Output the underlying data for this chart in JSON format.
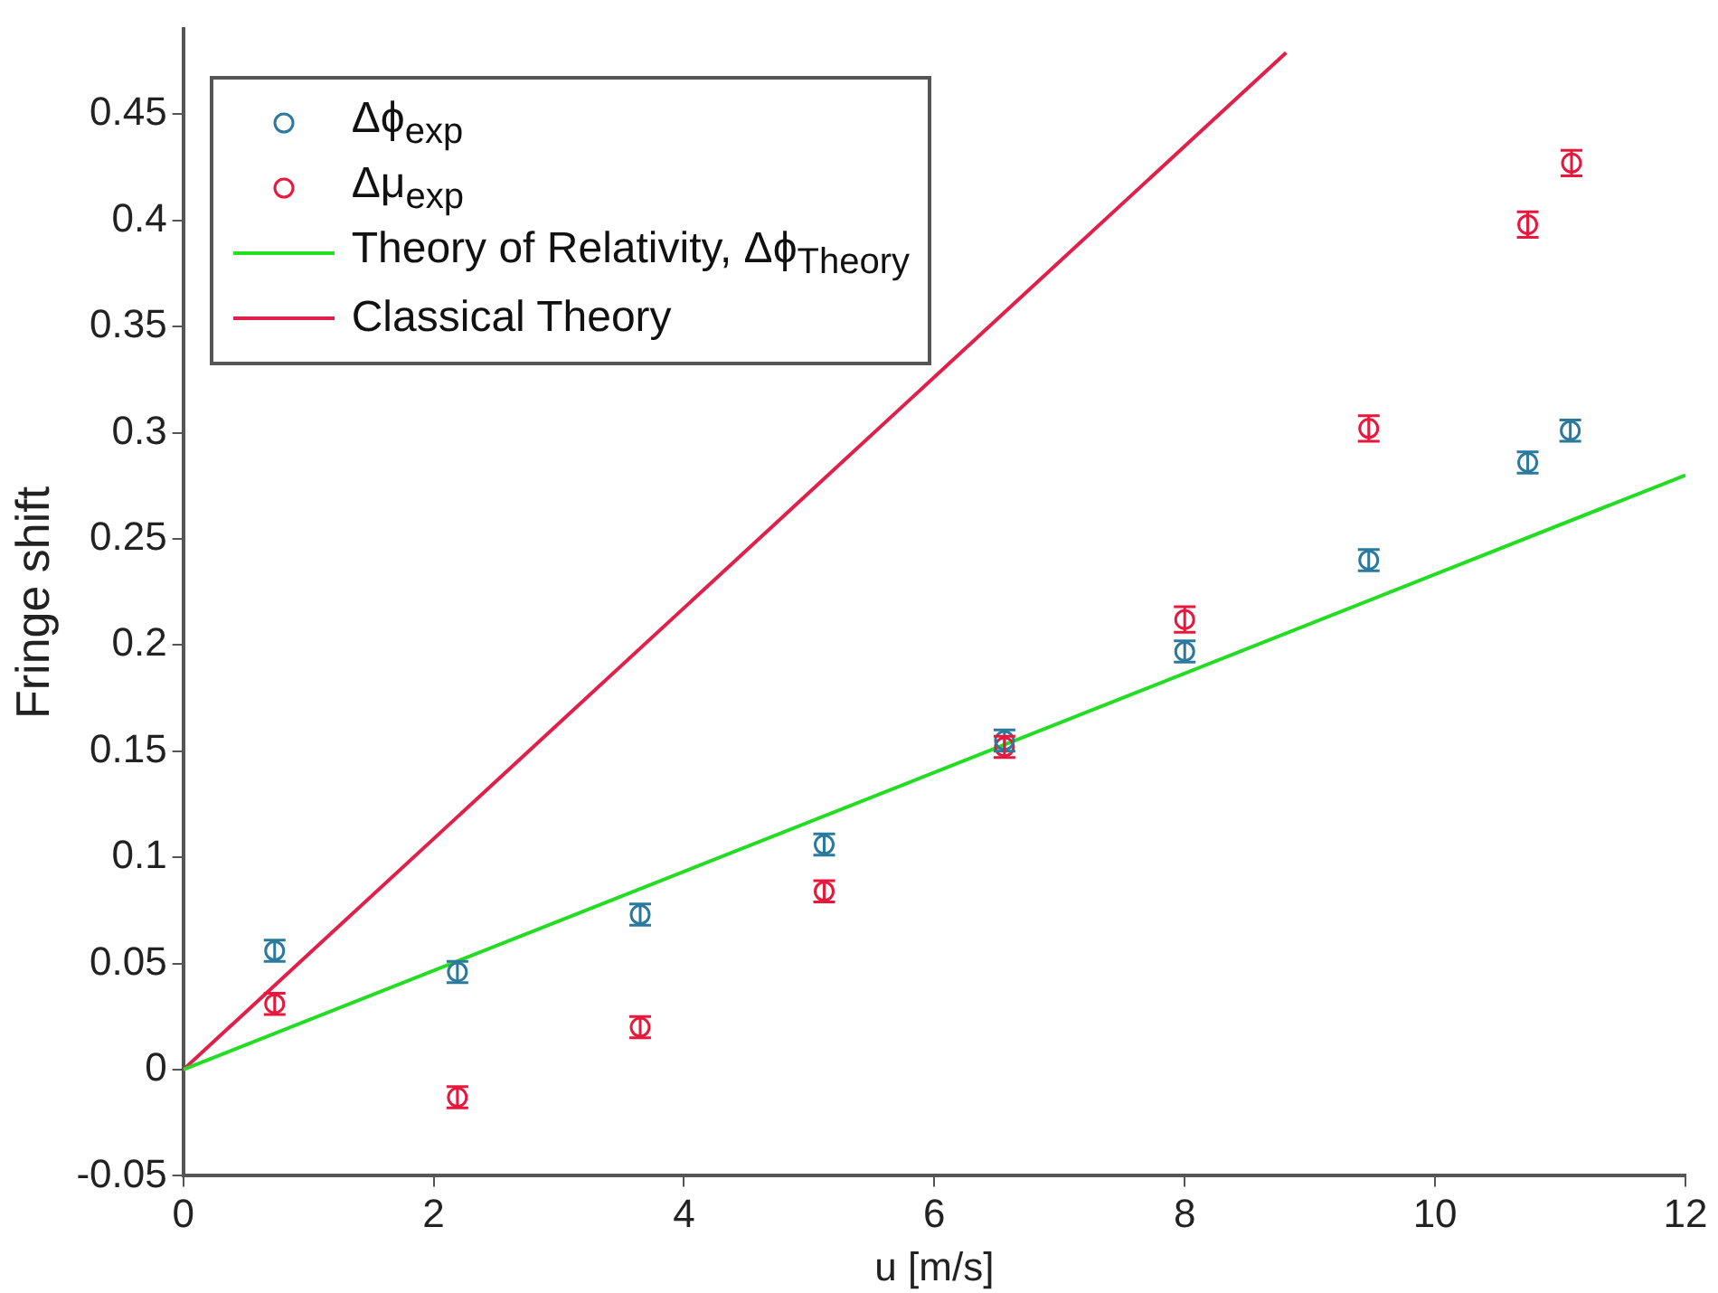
{
  "chart_data": {
    "type": "scatter",
    "xlabel": "u [m/s]",
    "ylabel": "Fringe shift",
    "xlim": [
      0,
      12
    ],
    "xticks": [
      0,
      2,
      4,
      6,
      8,
      10,
      12
    ],
    "ylim": [
      -0.05,
      0.49
    ],
    "yticks": [
      -0.05,
      0,
      0.05,
      0.1,
      0.15,
      0.2,
      0.25,
      0.3,
      0.35,
      0.4,
      0.45
    ],
    "grid": false,
    "legend": "top left",
    "series": [
      {
        "name": "Δϕ$_{exp}$",
        "type": "scatter",
        "marker": "circle",
        "color": "#2b7a9e",
        "x": [
          0.73,
          2.19,
          3.65,
          5.12,
          6.56,
          8.0,
          9.47,
          10.74,
          11.08
        ],
        "values": [
          0.056,
          0.046,
          0.073,
          0.106,
          0.155,
          0.197,
          0.24,
          0.286,
          0.301
        ],
        "errors": [
          0.005,
          0.005,
          0.005,
          0.005,
          0.005,
          0.005,
          0.005,
          0.005,
          0.005
        ]
      },
      {
        "name": "Δμ$_{exp}$",
        "type": "scatter",
        "marker": "circle",
        "color": "#e8183c",
        "x": [
          0.73,
          2.19,
          3.65,
          5.12,
          6.56,
          8.0,
          9.47,
          10.74,
          11.09
        ],
        "values": [
          0.031,
          -0.013,
          0.02,
          0.084,
          0.152,
          0.212,
          0.302,
          0.398,
          0.427
        ],
        "errors": [
          0.005,
          0.005,
          0.005,
          0.005,
          0.005,
          0.006,
          0.006,
          0.006,
          0.006
        ]
      },
      {
        "name": "Theory of Relativity, Δϕ$_{Theory}$",
        "type": "line",
        "marker": "none",
        "color": "#22dd22",
        "x": [
          0,
          12
        ],
        "values": [
          0,
          0.28
        ]
      },
      {
        "name": "Classical Theory",
        "type": "line",
        "marker": "none",
        "color": "#e0204a",
        "x": [
          0,
          8.81
        ],
        "values": [
          0,
          0.479
        ]
      }
    ]
  }
}
